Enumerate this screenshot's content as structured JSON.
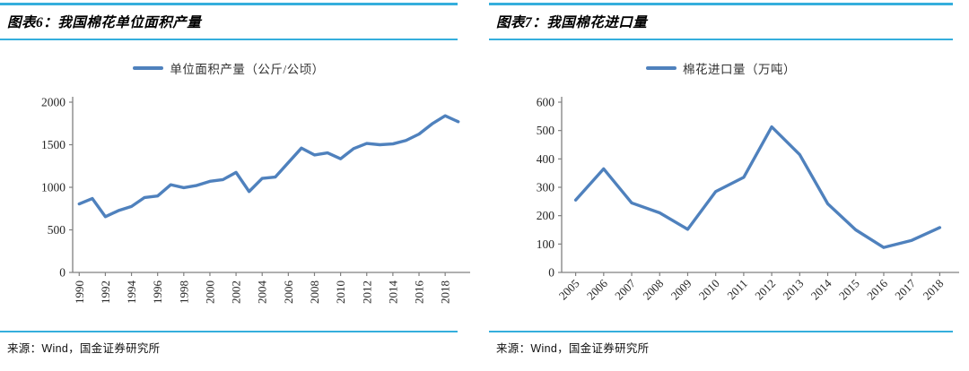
{
  "colors": {
    "rule_cyan": "#35AEDC",
    "line_blue": "#4F81BD",
    "axis_gray": "#808080",
    "tick_text": "#262626"
  },
  "panels": [
    {
      "title": "图表6：我国棉花单位面积产量",
      "legend": "单位面积产量（公斤/公顷）",
      "source": "来源：Wind，国金证券研究所"
    },
    {
      "title": "图表7：我国棉花进口量",
      "legend": "棉花进口量（万吨）",
      "source": "来源：Wind，国金证券研究所"
    }
  ],
  "chart_data": [
    {
      "type": "line",
      "title": "图表6：我国棉花单位面积产量",
      "legend": "单位面积产量（公斤/公顷）",
      "legend_position": "top",
      "grid": false,
      "x": [
        1990,
        1991,
        1992,
        1993,
        1994,
        1995,
        1996,
        1997,
        1998,
        1999,
        2000,
        2001,
        2002,
        2003,
        2004,
        2005,
        2006,
        2007,
        2008,
        2009,
        2010,
        2011,
        2012,
        2013,
        2014,
        2015,
        2016,
        2017,
        2018,
        2019
      ],
      "values": [
        805,
        868,
        655,
        726,
        775,
        880,
        898,
        1030,
        995,
        1022,
        1070,
        1090,
        1175,
        950,
        1105,
        1120,
        1290,
        1460,
        1380,
        1405,
        1335,
        1455,
        1515,
        1500,
        1510,
        1550,
        1625,
        1745,
        1840,
        1770
      ],
      "ylim": [
        0,
        2000
      ],
      "ytick_step": 500,
      "xtick_step": 2,
      "xlabel_rotation": -90,
      "line_color": "#4F81BD"
    },
    {
      "type": "line",
      "title": "图表7：我国棉花进口量",
      "legend": "棉花进口量（万吨）",
      "legend_position": "top",
      "grid": false,
      "x": [
        2005,
        2006,
        2007,
        2008,
        2009,
        2010,
        2011,
        2012,
        2013,
        2014,
        2015,
        2016,
        2017,
        2018
      ],
      "values": [
        255,
        365,
        245,
        210,
        152,
        285,
        335,
        513,
        415,
        242,
        150,
        88,
        113,
        158
      ],
      "ylim": [
        0,
        600
      ],
      "ytick_step": 100,
      "xtick_step": 1,
      "xlabel_rotation": -45,
      "line_color": "#4F81BD"
    }
  ]
}
